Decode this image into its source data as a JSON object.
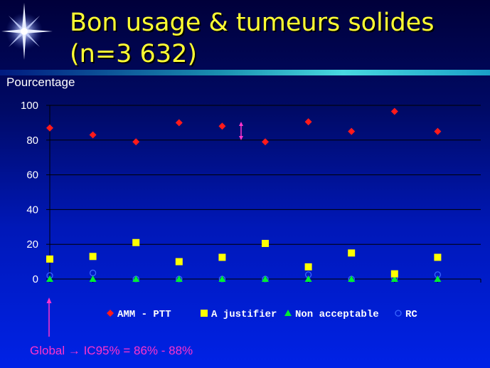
{
  "slide": {
    "title": "Bon usage & tumeurs solides\n(n=3 632)",
    "footnote": "Global → IC95% = 86% - 88%"
  },
  "colors": {
    "title": "#ffff33",
    "accent_arrow": "#ff33cc"
  },
  "chart_data": {
    "type": "scatter",
    "x": [
      1,
      2,
      3,
      4,
      5,
      6,
      7,
      8,
      9,
      10
    ],
    "ylabel": "Pourcentage",
    "ylim": [
      0,
      100
    ],
    "yticks": [
      0,
      20,
      40,
      60,
      80,
      100
    ],
    "grid": true,
    "legend_position": "bottom",
    "series": [
      {
        "name": "AMM - PTT",
        "marker": "diamond",
        "color": "#ff1a1a",
        "values": [
          87,
          83,
          79,
          90,
          88,
          79,
          90.5,
          85,
          96.5,
          85
        ]
      },
      {
        "name": "A justifier",
        "marker": "square",
        "color": "#ffff00",
        "values": [
          11.5,
          13,
          21,
          10,
          12.5,
          20.5,
          7,
          15,
          3,
          12.5
        ]
      },
      {
        "name": "Non acceptable",
        "marker": "triangle",
        "color": "#00ee33",
        "values": [
          0,
          0,
          0,
          0,
          0,
          0,
          0,
          0,
          0,
          0
        ]
      },
      {
        "name": "RC",
        "marker": "circle",
        "color": "#3a66ff",
        "values": [
          2,
          3.5,
          0,
          0,
          0,
          0,
          2.5,
          0,
          0.5,
          2.5
        ]
      }
    ]
  }
}
